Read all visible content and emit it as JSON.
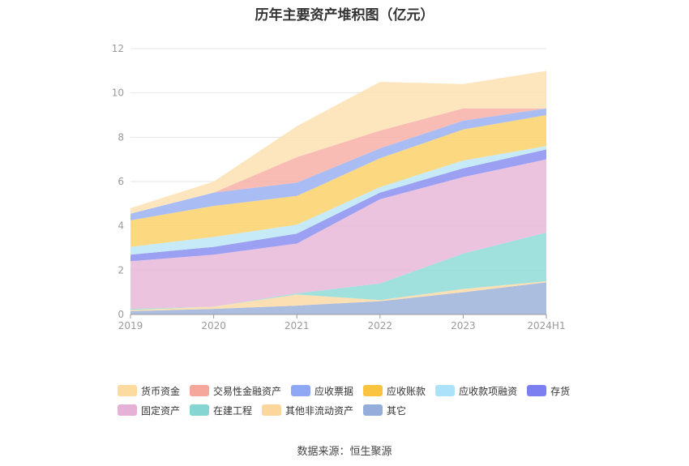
{
  "chart_data": {
    "type": "area",
    "title": "历年主要资产堆积图（亿元）",
    "categories": [
      "2019",
      "2020",
      "2021",
      "2022",
      "2023",
      "2024H1"
    ],
    "ylim": [
      0,
      12
    ],
    "yticks": [
      0,
      2,
      4,
      6,
      8,
      10,
      12
    ],
    "grid": true,
    "legend_position": "bottom",
    "series": [
      {
        "name": "其它",
        "color": "#9db3d9",
        "values": [
          0.15,
          0.25,
          0.4,
          0.6,
          1.0,
          1.45
        ]
      },
      {
        "name": "其他非流动资产",
        "color": "#fcd9a6",
        "values": [
          0.05,
          0.1,
          0.5,
          0.05,
          0.15,
          0.05
        ]
      },
      {
        "name": "在建工程",
        "color": "#8fdcd8",
        "values": [
          0.05,
          0.0,
          0.05,
          0.75,
          1.6,
          2.2
        ]
      },
      {
        "name": "固定资产",
        "color": "#e8b9d8",
        "values": [
          2.15,
          2.35,
          2.25,
          3.8,
          3.45,
          3.3
        ]
      },
      {
        "name": "存货",
        "color": "#8a8ff0",
        "values": [
          0.3,
          0.35,
          0.45,
          0.3,
          0.4,
          0.45
        ]
      },
      {
        "name": "应收款项融资",
        "color": "#bde6f7",
        "values": [
          0.35,
          0.45,
          0.4,
          0.25,
          0.35,
          0.15
        ]
      },
      {
        "name": "应收账款",
        "color": "#fcd26a",
        "values": [
          1.2,
          1.4,
          1.3,
          1.3,
          1.4,
          1.4
        ]
      },
      {
        "name": "应收票据",
        "color": "#9ab1f2",
        "values": [
          0.3,
          0.6,
          0.6,
          0.45,
          0.4,
          0.3
        ]
      },
      {
        "name": "交易性金融资产",
        "color": "#f7b0a8",
        "values": [
          0.0,
          0.0,
          1.15,
          0.8,
          0.55,
          0.0
        ]
      },
      {
        "name": "货币资金",
        "color": "#fde2b3",
        "values": [
          0.25,
          0.5,
          1.4,
          2.2,
          1.1,
          1.7
        ]
      }
    ],
    "legend_order": [
      "货币资金",
      "交易性金融资产",
      "应收票据",
      "应收账款",
      "应收款项融资",
      "存货",
      "固定资产",
      "在建工程",
      "其他非流动资产",
      "其它"
    ]
  },
  "legend": {
    "row1": [
      {
        "label": "货币资金",
        "color": "#fddba0"
      },
      {
        "label": "交易性金融资产",
        "color": "#f5a79b"
      },
      {
        "label": "应收票据",
        "color": "#8fa8f5"
      },
      {
        "label": "应收账款",
        "color": "#fbc43f"
      },
      {
        "label": "应收款项融资",
        "color": "#ace3fb"
      },
      {
        "label": "存货",
        "color": "#7b7ff0"
      }
    ],
    "row2": [
      {
        "label": "固定资产",
        "color": "#e6b1d6"
      },
      {
        "label": "在建工程",
        "color": "#85d6d3"
      },
      {
        "label": "其他非流动资产",
        "color": "#fdd69c"
      },
      {
        "label": "其它",
        "color": "#95addb"
      }
    ]
  },
  "source": "数据来源：恒生聚源"
}
